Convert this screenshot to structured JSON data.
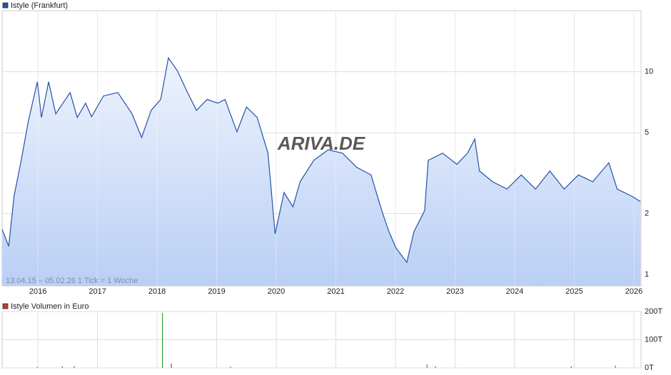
{
  "chart_data": [
    {
      "type": "area",
      "note": "13.04.15 – 05.02.26   1 Tick = 1 Woche",
      "watermark": "ARIVA.DE",
      "x": [
        2015.4,
        2015.51,
        2015.6,
        2015.72,
        2015.84,
        2015.99,
        2016.06,
        2016.18,
        2016.3,
        2016.54,
        2016.66,
        2016.8,
        2016.9,
        2017.1,
        2017.34,
        2017.58,
        2017.74,
        2017.9,
        2018.06,
        2018.19,
        2018.34,
        2018.51,
        2018.66,
        2018.84,
        2019.02,
        2019.14,
        2019.34,
        2019.5,
        2019.68,
        2019.86,
        2019.98,
        2020.13,
        2020.28,
        2020.4,
        2020.63,
        2020.87,
        2021.11,
        2021.35,
        2021.59,
        2021.77,
        2021.89,
        2022.01,
        2022.19,
        2022.31,
        2022.49,
        2022.55,
        2022.79,
        2023.03,
        2023.21,
        2023.33,
        2023.41,
        2023.63,
        2023.87,
        2024.11,
        2024.35,
        2024.59,
        2024.83,
        2025.07,
        2025.31,
        2025.58,
        2025.72,
        2025.96,
        2026.11
      ],
      "series": [
        {
          "name": "Istyle (Frankfurt)",
          "color": "#2452a8",
          "values": [
            1.67,
            1.38,
            2.44,
            3.66,
            5.71,
            8.92,
            5.95,
            8.92,
            6.2,
            7.9,
            5.95,
            7.0,
            6.0,
            7.6,
            7.9,
            6.2,
            4.74,
            6.45,
            7.3,
            11.7,
            10.1,
            7.9,
            6.45,
            7.3,
            7.0,
            7.3,
            5.06,
            6.7,
            5.95,
            3.97,
            1.59,
            2.54,
            2.16,
            2.87,
            3.66,
            4.12,
            3.97,
            3.38,
            3.1,
            2.07,
            1.63,
            1.35,
            1.15,
            1.63,
            2.07,
            3.66,
            3.97,
            3.5,
            3.97,
            4.66,
            3.24,
            2.87,
            2.64,
            3.1,
            2.64,
            3.24,
            2.64,
            3.1,
            2.87,
            3.56,
            2.64,
            2.44,
            2.29
          ]
        }
      ],
      "xlim": [
        2015.4,
        2026.12
      ],
      "xticks": [
        2016,
        2017,
        2018,
        2019,
        2020,
        2021,
        2022,
        2023,
        2024,
        2025,
        2026
      ],
      "ylim": [
        0.88,
        20
      ],
      "yticks": [
        1,
        2,
        5,
        10
      ],
      "log_scale": true,
      "grid": true
    },
    {
      "type": "bar",
      "x": [
        2015.99,
        2016.41,
        2016.61,
        2018.09,
        2018.24,
        2019.23,
        2022.53,
        2022.67,
        2024.95,
        2025.69
      ],
      "series": [
        {
          "name": "Istyle Volumen in Euro",
          "color": "#c0392b",
          "values": [
            3000,
            5000,
            6000,
            195000,
            15000,
            4000,
            12000,
            6000,
            5000,
            8000
          ],
          "colors": [
            "#c0392b",
            "#c0392b",
            "#c0392b",
            "#2ca02c",
            "#c0392b",
            "#c0392b",
            "#2ca02c",
            "#2ca02c",
            "#c0392b",
            "#2ca02c"
          ]
        }
      ],
      "xlim": [
        2015.4,
        2026.12
      ],
      "xticks": [
        2016,
        2017,
        2018,
        2019,
        2020,
        2021,
        2022,
        2023,
        2024,
        2025,
        2026
      ],
      "ylim": [
        0,
        200000
      ],
      "yticks": [
        {
          "value": 0,
          "label": "0T"
        },
        {
          "value": 100000,
          "label": "100T"
        },
        {
          "value": 200000,
          "label": "200T"
        }
      ],
      "grid": true
    }
  ]
}
